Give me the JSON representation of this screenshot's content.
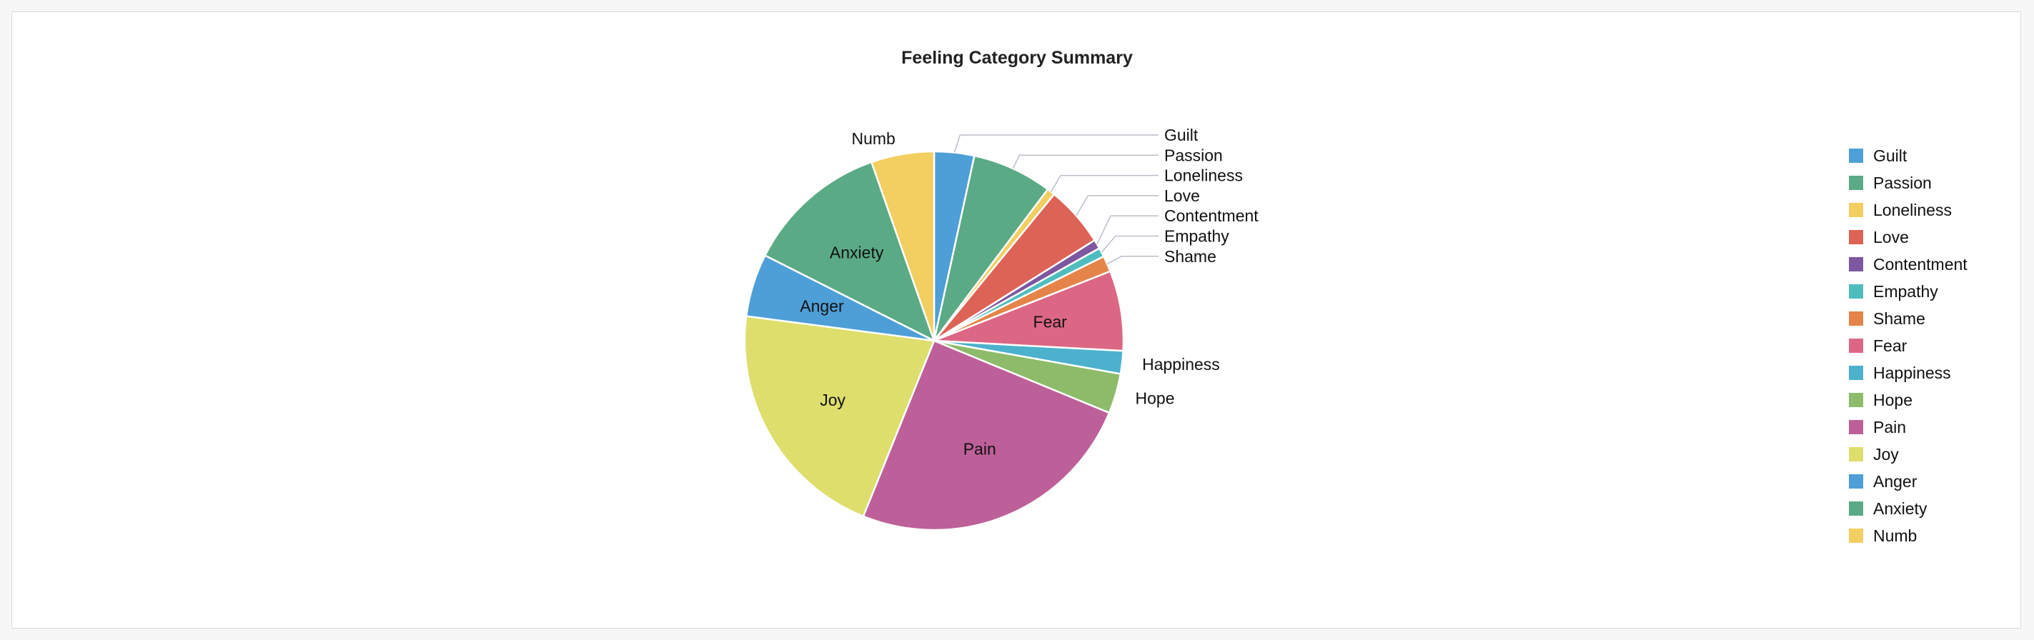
{
  "chart_data": {
    "type": "pie",
    "title": "Feeling Category Summary",
    "legend_position": "right",
    "slices": [
      {
        "label": "Guilt",
        "value": 3.5,
        "color": "#4e9fd7",
        "label_mode": "outside"
      },
      {
        "label": "Passion",
        "value": 7.0,
        "color": "#5aaa85",
        "label_mode": "outside"
      },
      {
        "label": "Loneliness",
        "value": 0.7,
        "color": "#f3ce60",
        "label_mode": "outside"
      },
      {
        "label": "Love",
        "value": 5.3,
        "color": "#dd6357",
        "label_mode": "outside"
      },
      {
        "label": "Contentment",
        "value": 0.8,
        "color": "#7d57a0",
        "label_mode": "outside"
      },
      {
        "label": "Empathy",
        "value": 0.8,
        "color": "#4fbdbd",
        "label_mode": "outside"
      },
      {
        "label": "Shame",
        "value": 1.4,
        "color": "#e58449",
        "label_mode": "outside"
      },
      {
        "label": "Fear",
        "value": 7.0,
        "color": "#dc6785",
        "label_mode": "inside"
      },
      {
        "label": "Happiness",
        "value": 2.0,
        "color": "#4cb1cc",
        "label_mode": "outside"
      },
      {
        "label": "Hope",
        "value": 3.5,
        "color": "#8dbb6a",
        "label_mode": "outside"
      },
      {
        "label": "Pain",
        "value": 25.5,
        "color": "#bd6099",
        "label_mode": "inside"
      },
      {
        "label": "Joy",
        "value": 21.5,
        "color": "#ddde6c",
        "label_mode": "inside"
      },
      {
        "label": "Anger",
        "value": 5.5,
        "color": "#4e9fd7",
        "label_mode": "inside"
      },
      {
        "label": "Anxiety",
        "value": 12.5,
        "color": "#5aaa85",
        "label_mode": "inside"
      },
      {
        "label": "Numb",
        "value": 5.5,
        "color": "#f3ce60",
        "label_mode": "outside"
      }
    ]
  }
}
